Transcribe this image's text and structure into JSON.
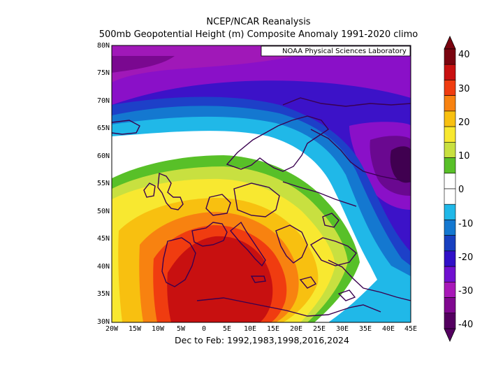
{
  "title_line1": "NCEP/NCAR Reanalysis",
  "title_line2": "500mb Geopotential Height (m) Composite Anomaly 1991-2020 climo",
  "credit": "NOAA Physical Sciences Laboratory",
  "footer": "Dec to Feb: 1992,1983,1998,2016,2024",
  "axes": {
    "lat_labels": [
      "80N",
      "75N",
      "70N",
      "65N",
      "60N",
      "55N",
      "50N",
      "45N",
      "40N",
      "35N",
      "30N"
    ],
    "lon_labels": [
      "20W",
      "15W",
      "10W",
      "5W",
      "0",
      "5E",
      "10E",
      "15E",
      "20E",
      "25E",
      "30E",
      "35E",
      "40E",
      "45E"
    ]
  },
  "colorbar": {
    "levels": [
      "40",
      "30",
      "20",
      "10",
      "0",
      "-10",
      "-20",
      "-30",
      "-40"
    ],
    "colors": [
      "#7a0410",
      "#c81010",
      "#f03c10",
      "#f88210",
      "#f8c010",
      "#f8e830",
      "#c8e040",
      "#58c028",
      "#ffffff",
      "#ffffff",
      "#20b8e8",
      "#1478d0",
      "#1840c0",
      "#3010c8",
      "#7010d0",
      "#a818b8",
      "#800890",
      "#540060"
    ]
  },
  "colors": {
    "coast": "#3a0050"
  }
}
